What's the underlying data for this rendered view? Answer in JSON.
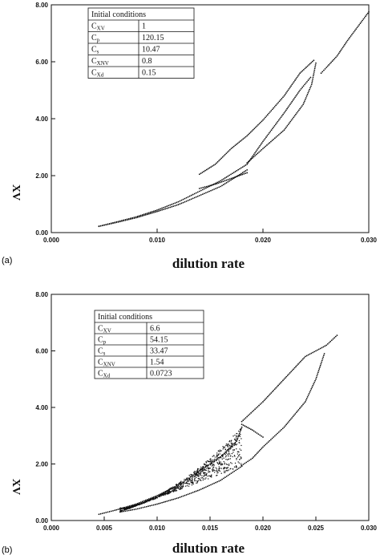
{
  "figure": {
    "panels": [
      {
        "label": "(a)",
        "chart_data": {
          "type": "scatter",
          "xlabel": "dilution rate",
          "ylabel": "XV",
          "xlim": [
            0.0,
            0.03
          ],
          "ylim": [
            0.0,
            8.0
          ],
          "x_ticks": [
            "0.000",
            "0.010",
            "0.020",
            "0.030"
          ],
          "y_ticks": [
            "0.00",
            "2.00",
            "4.00",
            "6.00",
            "8.00"
          ],
          "grid": false,
          "series": [
            {
              "values": [
                [
                  0.0045,
                  0.22
                ],
                [
                  0.006,
                  0.36
                ],
                [
                  0.008,
                  0.55
                ],
                [
                  0.01,
                  0.79
                ],
                [
                  0.012,
                  1.08
                ],
                [
                  0.014,
                  1.45
                ],
                [
                  0.016,
                  1.82
                ],
                [
                  0.0185,
                  2.4
                ],
                [
                  0.02,
                  3.2
                ],
                [
                  0.022,
                  4.2
                ],
                [
                  0.0235,
                  5.0
                ],
                [
                  0.0245,
                  5.45
                ]
              ]
            },
            {
              "values": [
                [
                  0.0045,
                  0.22
                ],
                [
                  0.006,
                  0.34
                ],
                [
                  0.008,
                  0.52
                ],
                [
                  0.01,
                  0.74
                ],
                [
                  0.012,
                  0.98
                ],
                [
                  0.014,
                  1.3
                ],
                [
                  0.016,
                  1.62
                ],
                [
                  0.0185,
                  2.2
                ]
              ]
            },
            {
              "values": [
                [
                  0.014,
                  2.05
                ],
                [
                  0.0155,
                  2.4
                ],
                [
                  0.017,
                  2.95
                ],
                [
                  0.0185,
                  3.4
                ],
                [
                  0.02,
                  3.95
                ],
                [
                  0.022,
                  4.8
                ],
                [
                  0.0235,
                  5.6
                ],
                [
                  0.0248,
                  6.05
                ]
              ]
            },
            {
              "values": [
                [
                  0.014,
                  1.55
                ],
                [
                  0.0155,
                  1.7
                ],
                [
                  0.017,
                  1.9
                ],
                [
                  0.0185,
                  2.1
                ]
              ]
            },
            {
              "values": [
                [
                  0.0185,
                  2.45
                ],
                [
                  0.02,
                  2.95
                ],
                [
                  0.022,
                  3.6
                ],
                [
                  0.0238,
                  4.5
                ],
                [
                  0.0246,
                  5.2
                ],
                [
                  0.025,
                  5.95
                ]
              ]
            },
            {
              "values": [
                [
                  0.0255,
                  5.6
                ],
                [
                  0.026,
                  5.8
                ],
                [
                  0.027,
                  6.2
                ],
                [
                  0.028,
                  6.75
                ],
                [
                  0.029,
                  7.25
                ],
                [
                  0.03,
                  7.75
                ]
              ]
            }
          ],
          "table": {
            "header": "Initial conditions",
            "rows": [
              {
                "sym": "C",
                "sub": "XV",
                "val": "1"
              },
              {
                "sym": "C",
                "sub": "p",
                "val": "120.15"
              },
              {
                "sym": "C",
                "sub": "s",
                "val": "10.47"
              },
              {
                "sym": "C",
                "sub": "XNV",
                "val": "0.8"
              },
              {
                "sym": "C",
                "sub": "Xd",
                "val": "0.15"
              }
            ]
          }
        }
      },
      {
        "label": "(b)",
        "chart_data": {
          "type": "scatter",
          "xlabel": "dilution rate",
          "ylabel": "XV",
          "xlim": [
            0.0,
            0.03
          ],
          "ylim": [
            0.0,
            8.0
          ],
          "x_ticks": [
            "0.000",
            "0.005",
            "0.010",
            "0.015",
            "0.020",
            "0.025",
            "0.030"
          ],
          "y_ticks": [
            "0.00",
            "2.00",
            "4.00",
            "6.00",
            "8.00"
          ],
          "grid": false,
          "series": [
            {
              "values": [
                [
                  0.0045,
                  0.22
                ],
                [
                  0.006,
                  0.36
                ],
                [
                  0.008,
                  0.58
                ],
                [
                  0.01,
                  0.88
                ],
                [
                  0.012,
                  1.25
                ],
                [
                  0.014,
                  1.75
                ],
                [
                  0.016,
                  2.25
                ],
                [
                  0.0175,
                  2.8
                ],
                [
                  0.018,
                  3.3
                ]
              ]
            },
            {
              "values": [
                [
                  0.0065,
                  0.3
                ],
                [
                  0.008,
                  0.4
                ],
                [
                  0.01,
                  0.58
                ],
                [
                  0.012,
                  0.8
                ],
                [
                  0.014,
                  1.08
                ],
                [
                  0.016,
                  1.42
                ],
                [
                  0.018,
                  1.92
                ]
              ]
            },
            {
              "values": [
                [
                  0.018,
                  3.5
                ],
                [
                  0.02,
                  4.2
                ],
                [
                  0.022,
                  5.0
                ],
                [
                  0.024,
                  5.8
                ],
                [
                  0.026,
                  6.2
                ],
                [
                  0.027,
                  6.55
                ]
              ]
            },
            {
              "values": [
                [
                  0.018,
                  3.4
                ],
                [
                  0.019,
                  3.2
                ],
                [
                  0.02,
                  2.95
                ]
              ]
            },
            {
              "values": [
                [
                  0.018,
                  1.95
                ],
                [
                  0.019,
                  2.2
                ],
                [
                  0.02,
                  2.6
                ],
                [
                  0.022,
                  3.3
                ],
                [
                  0.024,
                  4.2
                ],
                [
                  0.025,
                  5.0
                ],
                [
                  0.0258,
                  5.9
                ]
              ]
            }
          ],
          "band": {
            "x": [
              0.0065,
              0.018
            ],
            "lower": [
              0.3,
              1.92
            ],
            "upper": [
              0.45,
              3.3
            ]
          },
          "table": {
            "header": "Initial conditions",
            "rows": [
              {
                "sym": "C",
                "sub": "XV",
                "val": "6.6"
              },
              {
                "sym": "C",
                "sub": "p",
                "val": "54.15"
              },
              {
                "sym": "C",
                "sub": "s",
                "val": "33.47"
              },
              {
                "sym": "C",
                "sub": "XNV",
                "val": "1.54"
              },
              {
                "sym": "C",
                "sub": "Xd",
                "val": "0.0723"
              }
            ]
          }
        }
      }
    ]
  }
}
